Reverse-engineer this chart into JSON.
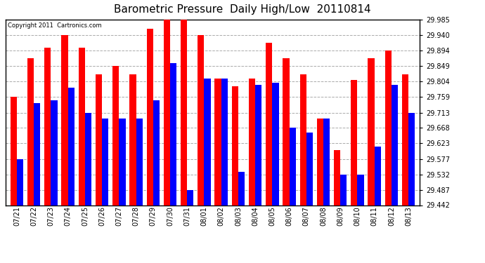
{
  "title": "Barometric Pressure  Daily High/Low  20110814",
  "copyright_text": "Copyright 2011  Cartronics.com",
  "dates": [
    "07/21",
    "07/22",
    "07/23",
    "07/24",
    "07/25",
    "07/26",
    "07/27",
    "07/28",
    "07/29",
    "07/30",
    "07/31",
    "08/01",
    "08/02",
    "08/03",
    "08/04",
    "08/05",
    "08/06",
    "08/07",
    "08/08",
    "08/09",
    "08/10",
    "08/11",
    "08/12",
    "08/13"
  ],
  "highs": [
    29.759,
    29.872,
    29.904,
    29.94,
    29.904,
    29.826,
    29.849,
    29.826,
    29.958,
    29.985,
    29.985,
    29.94,
    29.813,
    29.79,
    29.813,
    29.917,
    29.872,
    29.826,
    29.695,
    29.604,
    29.808,
    29.872,
    29.894,
    29.826
  ],
  "lows": [
    29.577,
    29.74,
    29.75,
    29.786,
    29.713,
    29.695,
    29.695,
    29.695,
    29.75,
    29.858,
    29.487,
    29.813,
    29.813,
    29.54,
    29.795,
    29.8,
    29.668,
    29.655,
    29.695,
    29.532,
    29.532,
    29.613,
    29.795,
    29.713
  ],
  "bar_color_high": "#ff0000",
  "bar_color_low": "#0000ff",
  "background_color": "#ffffff",
  "plot_bg_color": "#ffffff",
  "grid_color": "#aaaaaa",
  "title_fontsize": 11,
  "yticks": [
    29.442,
    29.487,
    29.532,
    29.577,
    29.623,
    29.668,
    29.713,
    29.759,
    29.804,
    29.849,
    29.894,
    29.94,
    29.985
  ],
  "ymin": 29.442,
  "ymax": 29.985,
  "bar_width": 0.38,
  "xlim_left": -0.65,
  "xlim_right": 23.65
}
